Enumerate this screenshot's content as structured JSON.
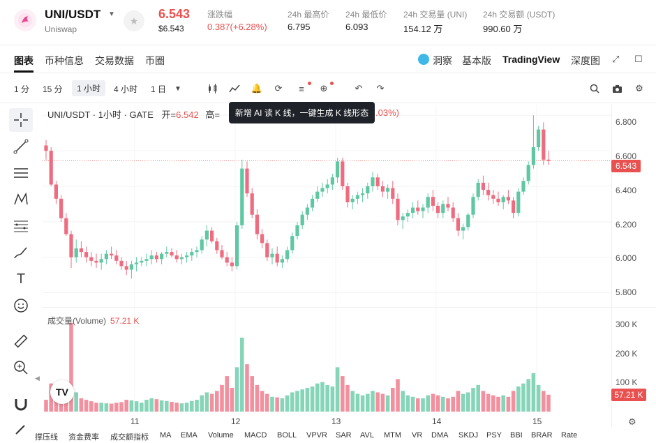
{
  "header": {
    "pair": "UNI/USDT",
    "pair_sub": "Uniswap",
    "price": "6.543",
    "price_usd": "$6.543",
    "change_label": "涨跌幅",
    "change_value": "0.387(+6.28%)",
    "high_label": "24h 最高价",
    "high_value": "6.795",
    "low_label": "24h 最低价",
    "low_value": "6.093",
    "vol_label": "24h 交易量 (UNI)",
    "vol_value": "154.12 万",
    "amount_label": "24h 交易额 (USDT)",
    "amount_value": "990.60 万"
  },
  "tabs": [
    "图表",
    "币种信息",
    "交易数据",
    "币圈"
  ],
  "right_tabs": {
    "dongcha": "洞察",
    "basic": "基本版",
    "tv": "TradingView",
    "depth": "深度图"
  },
  "timeframes": [
    "1 分",
    "15 分",
    "1 小时",
    "4 小时",
    "1 日"
  ],
  "legend": {
    "title": "UNI/USDT · 1小时 · GATE",
    "open_label": "开=",
    "open_value": "6.542",
    "high_label": "高=",
    "tail": ".03%)"
  },
  "tooltip": "新增 AI 读 K 线，一键生成 K 线形态",
  "volume_legend": {
    "label": "成交量(Volume)",
    "value": "57.21 K"
  },
  "y_labels": [
    "6.800",
    "6.600",
    "6.400",
    "6.200",
    "6.000",
    "5.800"
  ],
  "vol_labels": [
    "300 K",
    "200 K",
    "100 K"
  ],
  "price_tag": "6.543",
  "vol_tag": "57.21 K",
  "x_labels": [
    "11",
    "12",
    "13",
    "14",
    "15"
  ],
  "indicators": [
    "撑压线",
    "资金费率",
    "成交额指标",
    "MA",
    "EMA",
    "Volume",
    "MACD",
    "BOLL",
    "VPVR",
    "SAR",
    "AVL",
    "MTM",
    "VR",
    "DMA",
    "SKDJ",
    "PSY",
    "BBI",
    "BRAR",
    "Rate"
  ],
  "colors": {
    "up": "#5fc7a2",
    "down": "#ef6b7f",
    "accent": "#e8514f"
  },
  "chart_data": {
    "type": "candlestick",
    "y_range": [
      5.72,
      6.86
    ],
    "volume_range": [
      0,
      330000
    ],
    "x_ticks": [
      "11",
      "12",
      "13",
      "14",
      "15"
    ],
    "candles": [
      [
        6.63,
        6.66,
        6.55,
        6.6,
        40000
      ],
      [
        6.6,
        6.62,
        6.4,
        6.41,
        95000
      ],
      [
        6.41,
        6.43,
        6.3,
        6.33,
        60000
      ],
      [
        6.33,
        6.35,
        6.2,
        6.22,
        50000
      ],
      [
        6.22,
        6.25,
        6.12,
        6.13,
        42000
      ],
      [
        6.13,
        6.15,
        5.94,
        6.0,
        300000
      ],
      [
        6.0,
        6.1,
        5.97,
        6.05,
        65000
      ],
      [
        6.05,
        6.09,
        6.0,
        6.03,
        45000
      ],
      [
        6.03,
        6.06,
        5.97,
        6.0,
        40000
      ],
      [
        6.0,
        6.03,
        5.95,
        5.98,
        35000
      ],
      [
        5.98,
        6.02,
        5.94,
        5.97,
        30000
      ],
      [
        5.97,
        6.02,
        5.93,
        5.99,
        30000
      ],
      [
        5.99,
        6.04,
        5.96,
        6.02,
        28000
      ],
      [
        6.02,
        6.06,
        5.99,
        6.01,
        27000
      ],
      [
        6.01,
        6.04,
        5.96,
        5.98,
        30000
      ],
      [
        5.98,
        6.0,
        5.93,
        5.95,
        32000
      ],
      [
        5.95,
        5.98,
        5.9,
        5.93,
        40000
      ],
      [
        5.93,
        5.98,
        5.88,
        5.96,
        38000
      ],
      [
        5.96,
        6.0,
        5.92,
        5.97,
        35000
      ],
      [
        5.97,
        6.0,
        5.95,
        5.98,
        30000
      ],
      [
        5.98,
        6.02,
        5.95,
        5.99,
        40000
      ],
      [
        5.99,
        6.04,
        5.96,
        6.01,
        45000
      ],
      [
        6.01,
        6.03,
        5.97,
        5.99,
        42000
      ],
      [
        5.99,
        6.03,
        5.96,
        6.02,
        38000
      ],
      [
        6.02,
        6.06,
        6.0,
        6.03,
        36000
      ],
      [
        6.03,
        6.05,
        6.0,
        6.01,
        33000
      ],
      [
        6.01,
        6.04,
        5.97,
        5.99,
        30000
      ],
      [
        5.99,
        6.02,
        5.96,
        6.0,
        28000
      ],
      [
        6.0,
        6.03,
        5.97,
        6.01,
        30000
      ],
      [
        6.01,
        6.05,
        5.98,
        6.03,
        36000
      ],
      [
        6.03,
        6.06,
        6.0,
        6.04,
        40000
      ],
      [
        6.04,
        6.12,
        6.02,
        6.1,
        55000
      ],
      [
        6.1,
        6.18,
        6.06,
        6.15,
        65000
      ],
      [
        6.15,
        6.17,
        6.08,
        6.09,
        60000
      ],
      [
        6.09,
        6.11,
        6.02,
        6.04,
        70000
      ],
      [
        6.04,
        6.07,
        5.99,
        6.0,
        90000
      ],
      [
        6.0,
        6.03,
        5.95,
        5.97,
        120000
      ],
      [
        5.97,
        6.0,
        5.92,
        5.95,
        80000
      ],
      [
        5.95,
        6.2,
        5.93,
        6.18,
        150000
      ],
      [
        6.18,
        6.55,
        6.16,
        6.5,
        250000
      ],
      [
        6.5,
        6.54,
        6.34,
        6.36,
        160000
      ],
      [
        6.36,
        6.39,
        6.22,
        6.24,
        120000
      ],
      [
        6.24,
        6.27,
        6.1,
        6.13,
        90000
      ],
      [
        6.13,
        6.16,
        6.05,
        6.08,
        70000
      ],
      [
        6.08,
        6.1,
        5.98,
        6.0,
        60000
      ],
      [
        6.0,
        6.05,
        5.96,
        6.02,
        50000
      ],
      [
        6.02,
        6.06,
        5.95,
        5.97,
        48000
      ],
      [
        5.97,
        6.01,
        5.94,
        5.99,
        45000
      ],
      [
        5.99,
        6.06,
        5.97,
        6.04,
        55000
      ],
      [
        6.04,
        6.14,
        6.02,
        6.12,
        65000
      ],
      [
        6.12,
        6.2,
        6.1,
        6.18,
        70000
      ],
      [
        6.18,
        6.26,
        6.16,
        6.24,
        75000
      ],
      [
        6.24,
        6.3,
        6.21,
        6.28,
        80000
      ],
      [
        6.28,
        6.35,
        6.26,
        6.33,
        85000
      ],
      [
        6.33,
        6.4,
        6.31,
        6.37,
        95000
      ],
      [
        6.37,
        6.42,
        6.34,
        6.39,
        100000
      ],
      [
        6.39,
        6.44,
        6.36,
        6.41,
        90000
      ],
      [
        6.41,
        6.47,
        6.38,
        6.45,
        85000
      ],
      [
        6.45,
        6.56,
        6.42,
        6.54,
        150000
      ],
      [
        6.54,
        6.56,
        6.38,
        6.4,
        120000
      ],
      [
        6.4,
        6.42,
        6.28,
        6.31,
        90000
      ],
      [
        6.31,
        6.35,
        6.27,
        6.33,
        70000
      ],
      [
        6.33,
        6.37,
        6.3,
        6.35,
        60000
      ],
      [
        6.35,
        6.39,
        6.31,
        6.36,
        55000
      ],
      [
        6.36,
        6.42,
        6.33,
        6.4,
        60000
      ],
      [
        6.4,
        6.48,
        6.37,
        6.45,
        70000
      ],
      [
        6.45,
        6.47,
        6.38,
        6.4,
        65000
      ],
      [
        6.4,
        6.43,
        6.34,
        6.37,
        60000
      ],
      [
        6.37,
        6.41,
        6.33,
        6.39,
        55000
      ],
      [
        6.39,
        6.43,
        6.3,
        6.33,
        80000
      ],
      [
        6.33,
        6.36,
        6.18,
        6.21,
        110000
      ],
      [
        6.21,
        6.25,
        6.16,
        6.23,
        70000
      ],
      [
        6.23,
        6.27,
        6.2,
        6.25,
        55000
      ],
      [
        6.25,
        6.31,
        6.22,
        6.28,
        50000
      ],
      [
        6.28,
        6.32,
        6.24,
        6.26,
        45000
      ],
      [
        6.26,
        6.3,
        6.22,
        6.28,
        45000
      ],
      [
        6.28,
        6.36,
        6.25,
        6.34,
        55000
      ],
      [
        6.34,
        6.38,
        6.26,
        6.29,
        60000
      ],
      [
        6.29,
        6.31,
        6.22,
        6.25,
        55000
      ],
      [
        6.25,
        6.32,
        6.22,
        6.3,
        50000
      ],
      [
        6.3,
        6.34,
        6.26,
        6.28,
        45000
      ],
      [
        6.28,
        6.31,
        6.2,
        6.22,
        50000
      ],
      [
        6.22,
        6.25,
        6.12,
        6.15,
        70000
      ],
      [
        6.15,
        6.19,
        6.1,
        6.17,
        60000
      ],
      [
        6.17,
        6.25,
        6.15,
        6.24,
        65000
      ],
      [
        6.24,
        6.36,
        6.22,
        6.34,
        80000
      ],
      [
        6.34,
        6.44,
        6.32,
        6.42,
        90000
      ],
      [
        6.42,
        6.46,
        6.35,
        6.38,
        70000
      ],
      [
        6.38,
        6.42,
        6.32,
        6.35,
        60000
      ],
      [
        6.35,
        6.38,
        6.3,
        6.33,
        55000
      ],
      [
        6.33,
        6.37,
        6.29,
        6.31,
        50000
      ],
      [
        6.31,
        6.35,
        6.27,
        6.34,
        55000
      ],
      [
        6.34,
        6.38,
        6.3,
        6.32,
        50000
      ],
      [
        6.32,
        6.34,
        6.22,
        6.25,
        70000
      ],
      [
        6.25,
        6.39,
        6.23,
        6.37,
        85000
      ],
      [
        6.37,
        6.45,
        6.35,
        6.43,
        95000
      ],
      [
        6.43,
        6.54,
        6.41,
        6.52,
        110000
      ],
      [
        6.52,
        6.8,
        6.5,
        6.62,
        130000
      ],
      [
        6.62,
        6.74,
        6.6,
        6.72,
        90000
      ],
      [
        6.72,
        6.76,
        6.52,
        6.55,
        70000
      ],
      [
        6.55,
        6.6,
        6.52,
        6.543,
        57210
      ]
    ]
  }
}
